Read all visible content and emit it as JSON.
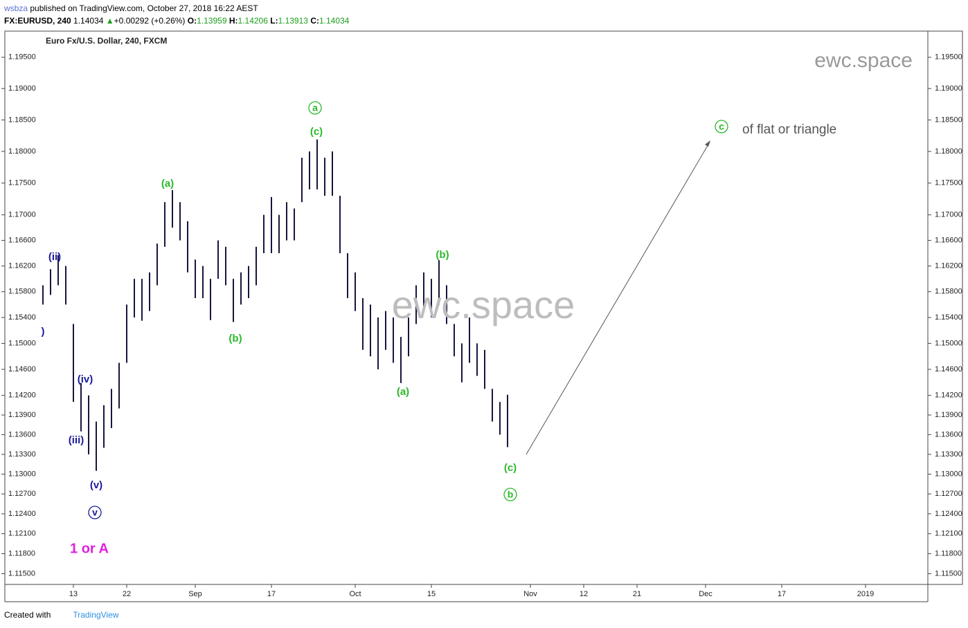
{
  "header": {
    "user": "wsbza",
    "published": "published on TradingView.com, October 27, 2018 16:22 AEST",
    "symbol": "FX:EURUSD, 240",
    "last": "1.14034",
    "arrow": "▲",
    "change": "+0.00292 (+0.26%)",
    "o_label": "O:",
    "o": "1.13959",
    "h_label": "H:",
    "h": "1.14206",
    "l_label": "L:",
    "l": "1.13913",
    "c_label": "C:",
    "c": "1.14034"
  },
  "footer": {
    "created": "Created with",
    "brand": "TradingView"
  },
  "chart_data": {
    "type": "ohlc",
    "title": "Euro Fx/U.S. Dollar, 240, FXCM",
    "color": "#15153d",
    "log": true,
    "categories": [
      null,
      null,
      null,
      null,
      null,
      null,
      null,
      null,
      null,
      "13",
      null,
      null,
      null,
      null,
      null,
      null,
      "22",
      null,
      null,
      null,
      null,
      null,
      null,
      null,
      null,
      "Sep",
      null,
      null,
      null,
      null,
      null,
      null,
      null,
      null,
      null,
      "17",
      null,
      null,
      null,
      null,
      null,
      null,
      null,
      null,
      null,
      null,
      "Oct",
      null,
      null,
      null,
      null,
      null,
      null,
      null,
      null,
      null,
      "15",
      null,
      null,
      null,
      null,
      null,
      null,
      null,
      null,
      null,
      null,
      null,
      null,
      "Nov",
      null,
      null,
      null,
      null,
      null,
      null,
      "12",
      null,
      null,
      null,
      null,
      null,
      null,
      "21",
      null,
      null,
      null,
      null,
      null,
      null,
      null,
      null,
      "Dec",
      null,
      null,
      null,
      null,
      null,
      null,
      null,
      null,
      null,
      "17",
      null,
      null,
      null,
      null,
      null,
      null,
      null,
      null,
      null,
      null,
      "2019",
      null,
      null,
      null,
      null,
      null,
      null,
      null
    ],
    "high": [
      null,
      null,
      null,
      null,
      null,
      1.159,
      1.1615,
      1.1637,
      1.162,
      1.153,
      1.1439,
      1.142,
      1.138,
      1.1405,
      1.143,
      1.147,
      1.156,
      1.16,
      1.16,
      1.161,
      1.1655,
      1.172,
      1.1739,
      1.172,
      1.169,
      1.163,
      1.162,
      1.16,
      1.166,
      1.165,
      1.16,
      1.161,
      1.162,
      1.165,
      1.17,
      1.1728,
      1.17,
      1.172,
      1.171,
      1.179,
      1.18,
      1.1819,
      1.179,
      1.18,
      1.173,
      1.164,
      1.161,
      1.157,
      1.156,
      1.154,
      1.155,
      1.154,
      1.151,
      1.154,
      1.159,
      1.161,
      1.16,
      1.1629,
      1.159,
      1.153,
      1.15,
      1.154,
      1.15,
      1.149,
      1.143,
      1.141,
      1.1421,
      null,
      null,
      null,
      null,
      null,
      null,
      null,
      null,
      null,
      null,
      null,
      null,
      null,
      null,
      null,
      null,
      null,
      null,
      null,
      null,
      null,
      null,
      null,
      null,
      null,
      null,
      null,
      null,
      null,
      null,
      null,
      null,
      null,
      null,
      null,
      null,
      null,
      null,
      null,
      null,
      null,
      null,
      null,
      null,
      null,
      null,
      null,
      null,
      null,
      null,
      null,
      null,
      null,
      null
    ],
    "low": [
      null,
      null,
      null,
      null,
      null,
      1.156,
      1.1575,
      1.159,
      1.156,
      1.141,
      1.1365,
      1.133,
      1.1305,
      1.134,
      1.137,
      1.14,
      1.147,
      1.154,
      1.1535,
      1.155,
      1.159,
      1.165,
      1.168,
      1.166,
      1.161,
      1.157,
      1.157,
      1.1536,
      1.16,
      1.159,
      1.1533,
      1.156,
      1.157,
      1.159,
      1.164,
      1.164,
      1.164,
      1.166,
      1.166,
      1.172,
      1.174,
      1.174,
      1.173,
      1.173,
      1.164,
      1.157,
      1.155,
      1.149,
      1.148,
      1.146,
      1.149,
      1.147,
      1.1439,
      1.148,
      1.153,
      1.155,
      1.154,
      1.156,
      1.153,
      1.148,
      1.144,
      1.147,
      1.145,
      1.143,
      1.138,
      1.136,
      1.1341,
      null,
      null,
      null,
      null,
      null,
      null,
      null,
      null,
      null,
      null,
      null,
      null,
      null,
      null,
      null,
      null,
      null,
      null,
      null,
      null,
      null,
      null,
      null,
      null,
      null,
      null,
      null,
      null,
      null,
      null,
      null,
      null,
      null,
      null,
      null,
      null,
      null,
      null,
      null,
      null,
      null,
      null,
      null,
      null,
      null,
      null,
      null,
      null,
      null,
      null,
      null,
      null,
      null,
      null
    ],
    "ylim": [
      1.1134,
      1.1992
    ],
    "yticks": [
      {
        "value": 1.195,
        "label": "1.19500"
      },
      {
        "value": 1.19,
        "label": "1.19000"
      },
      {
        "value": 1.185,
        "label": "1.18500"
      },
      {
        "value": 1.18,
        "label": "1.18000"
      },
      {
        "value": 1.175,
        "label": "1.17500"
      },
      {
        "value": 1.17,
        "label": "1.17000"
      },
      {
        "value": 1.166,
        "label": "1.16600"
      },
      {
        "value": 1.162,
        "label": "1.16200"
      },
      {
        "value": 1.158,
        "label": "1.15800"
      },
      {
        "value": 1.154,
        "label": "1.15400"
      },
      {
        "value": 1.15,
        "label": "1.15000"
      },
      {
        "value": 1.146,
        "label": "1.14600"
      },
      {
        "value": 1.142,
        "label": "1.14200"
      },
      {
        "value": 1.139,
        "label": "1.13900"
      },
      {
        "value": 1.136,
        "label": "1.13600"
      },
      {
        "value": 1.133,
        "label": "1.13300"
      },
      {
        "value": 1.13,
        "label": "1.13000"
      },
      {
        "value": 1.127,
        "label": "1.12700"
      },
      {
        "value": 1.124,
        "label": "1.12400"
      },
      {
        "value": 1.121,
        "label": "1.12100"
      },
      {
        "value": 1.118,
        "label": "1.11800"
      },
      {
        "value": 1.115,
        "label": "1.11500"
      }
    ],
    "annotations": [
      "(ii)",
      ")",
      "(iii)",
      "(iv)",
      "(v)",
      "v",
      "1 or A",
      "(a)",
      "(b)",
      "(c)",
      "a",
      "(a)",
      "(b)",
      "(c)",
      "b",
      "c",
      "of flat or triangle",
      "ewc.space",
      "ewc.space"
    ]
  }
}
